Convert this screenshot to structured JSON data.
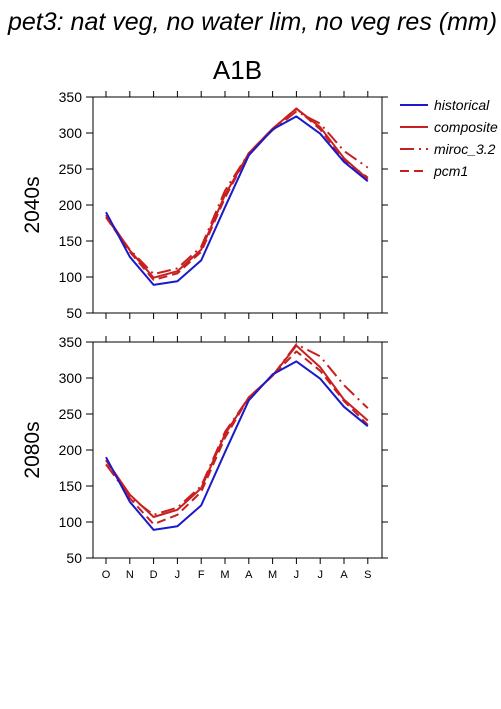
{
  "title": "pet3: nat veg, no water lim, no veg res (mm)",
  "scenario": "A1B",
  "legend": [
    {
      "name": "historical",
      "color": "#1a1ac8",
      "dash": ""
    },
    {
      "name": "composite",
      "color": "#c82020",
      "dash": ""
    },
    {
      "name": "miroc_3.2",
      "color": "#c82020",
      "dash": "14,5,2,5"
    },
    {
      "name": "pcm1",
      "color": "#c82020",
      "dash": "9,5"
    }
  ],
  "chart_data": [
    {
      "type": "line",
      "ylabel": "2040s",
      "ylim": [
        50,
        350
      ],
      "yticks": [
        "50",
        "100",
        "150",
        "200",
        "250",
        "300",
        "350"
      ],
      "categories": [
        "O",
        "N",
        "D",
        "J",
        "F",
        "M",
        "A",
        "M",
        "J",
        "J",
        "A",
        "S"
      ],
      "series": [
        {
          "name": "historical",
          "values": [
            190,
            128,
            89,
            94,
            123,
            197,
            269,
            305,
            323,
            299,
            260,
            233
          ]
        },
        {
          "name": "composite",
          "values": [
            186,
            137,
            99,
            108,
            138,
            214,
            272,
            306,
            334,
            308,
            265,
            236
          ]
        },
        {
          "name": "miroc_3.2",
          "values": [
            183,
            138,
            104,
            112,
            142,
            220,
            272,
            304,
            330,
            313,
            275,
            252
          ]
        },
        {
          "name": "pcm1",
          "values": [
            183,
            135,
            96,
            105,
            135,
            210,
            272,
            306,
            334,
            305,
            262,
            238
          ]
        }
      ]
    },
    {
      "type": "line",
      "ylabel": "2080s",
      "ylim": [
        50,
        350
      ],
      "yticks": [
        "50",
        "100",
        "150",
        "200",
        "250",
        "300",
        "350"
      ],
      "categories": [
        "O",
        "N",
        "D",
        "J",
        "F",
        "M",
        "A",
        "M",
        "J",
        "J",
        "A",
        "S"
      ],
      "series": [
        {
          "name": "historical",
          "values": [
            190,
            128,
            89,
            94,
            123,
            197,
            269,
            305,
            323,
            299,
            260,
            233
          ]
        },
        {
          "name": "composite",
          "values": [
            186,
            138,
            107,
            117,
            147,
            222,
            273,
            303,
            345,
            315,
            270,
            241
          ]
        },
        {
          "name": "miroc_3.2",
          "values": [
            180,
            135,
            110,
            120,
            150,
            225,
            273,
            303,
            347,
            330,
            290,
            258
          ]
        },
        {
          "name": "pcm1",
          "values": [
            186,
            133,
            97,
            110,
            142,
            217,
            273,
            303,
            337,
            310,
            268,
            235
          ]
        }
      ]
    }
  ]
}
